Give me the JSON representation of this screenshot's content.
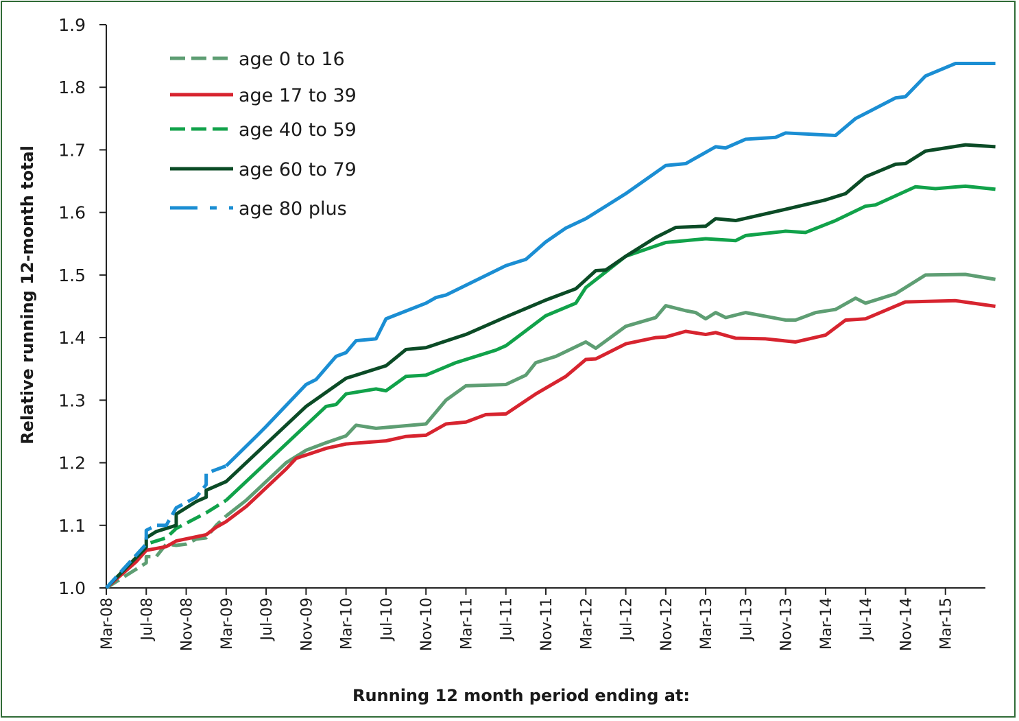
{
  "chart_data": {
    "type": "line",
    "title": "",
    "xlabel": "Running 12 month period ending at:",
    "ylabel": "Relative running 12-month total",
    "ylim": [
      1.0,
      1.9
    ],
    "yticks": [
      "1.0",
      "1.1",
      "1.2",
      "1.3",
      "1.4",
      "1.5",
      "1.6",
      "1.7",
      "1.8",
      "1.9"
    ],
    "xticks": [
      "Mar-08",
      "Jul-08",
      "Nov-08",
      "Mar-09",
      "Jul-09",
      "Nov-09",
      "Mar-10",
      "Jul-10",
      "Nov-10",
      "Mar-11",
      "Jul-11",
      "Nov-11",
      "Mar-12",
      "Jul-12",
      "Nov-12",
      "Mar-13",
      "Jul-13",
      "Nov-13",
      "Mar-14",
      "Jul-14",
      "Nov-14",
      "Mar-15"
    ],
    "x_range_months": [
      "Mar-08",
      "Jul-15"
    ],
    "grid": false,
    "legend_position": "top-left",
    "series": [
      {
        "name": "age 0 to 16",
        "color": "#5e9e73",
        "style": "dashed-then-solid",
        "points": [
          [
            "Mar-08",
            1.0
          ],
          [
            "Jun-08",
            1.03
          ],
          [
            "Jul-08",
            1.04
          ],
          [
            "Jul-08",
            1.05
          ],
          [
            "Aug-08",
            1.05
          ],
          [
            "Sep-08",
            1.07
          ],
          [
            "Oct-08",
            1.068
          ],
          [
            "Nov-08",
            1.07
          ],
          [
            "Dec-08",
            1.078
          ],
          [
            "Jan-09",
            1.08
          ],
          [
            "Feb-09",
            1.1
          ],
          [
            "Mar-09",
            1.115
          ],
          [
            "May-09",
            1.14
          ],
          [
            "Jul-09",
            1.17
          ],
          [
            "Sep-09",
            1.2
          ],
          [
            "Nov-09",
            1.22
          ],
          [
            "Jan-10",
            1.232
          ],
          [
            "Mar-10",
            1.243
          ],
          [
            "Apr-10",
            1.26
          ],
          [
            "Jun-10",
            1.255
          ],
          [
            "Nov-10",
            1.262
          ],
          [
            "Jan-11",
            1.3
          ],
          [
            "Mar-11",
            1.323
          ],
          [
            "Jul-11",
            1.325
          ],
          [
            "Sep-11",
            1.34
          ],
          [
            "Oct-11",
            1.36
          ],
          [
            "Dec-11",
            1.37
          ],
          [
            "Mar-12",
            1.393
          ],
          [
            "Apr-12",
            1.383
          ],
          [
            "Jul-12",
            1.418
          ],
          [
            "Oct-12",
            1.432
          ],
          [
            "Nov-12",
            1.451
          ],
          [
            "Jan-13",
            1.443
          ],
          [
            "Feb-13",
            1.44
          ],
          [
            "Mar-13",
            1.43
          ],
          [
            "Apr-13",
            1.44
          ],
          [
            "May-13",
            1.432
          ],
          [
            "Jul-13",
            1.44
          ],
          [
            "Nov-13",
            1.428
          ],
          [
            "Dec-13",
            1.428
          ],
          [
            "Feb-14",
            1.44
          ],
          [
            "Apr-14",
            1.445
          ],
          [
            "Jun-14",
            1.463
          ],
          [
            "Jul-14",
            1.455
          ],
          [
            "Oct-14",
            1.47
          ],
          [
            "Jan-15",
            1.5
          ],
          [
            "May-15",
            1.501
          ],
          [
            "Aug-15",
            1.493
          ]
        ]
      },
      {
        "name": "age 17 to 39",
        "color": "#d7242f",
        "style": "solid",
        "points": [
          [
            "Mar-08",
            1.0
          ],
          [
            "Jun-08",
            1.042
          ],
          [
            "Jul-08",
            1.06
          ],
          [
            "Sep-08",
            1.066
          ],
          [
            "Oct-08",
            1.075
          ],
          [
            "Jan-09",
            1.085
          ],
          [
            "Feb-09",
            1.097
          ],
          [
            "Mar-09",
            1.106
          ],
          [
            "May-09",
            1.13
          ],
          [
            "Jul-09",
            1.16
          ],
          [
            "Sep-09",
            1.19
          ],
          [
            "Oct-09",
            1.207
          ],
          [
            "Jan-10",
            1.223
          ],
          [
            "Mar-10",
            1.23
          ],
          [
            "Jul-10",
            1.235
          ],
          [
            "Sep-10",
            1.242
          ],
          [
            "Nov-10",
            1.244
          ],
          [
            "Jan-11",
            1.262
          ],
          [
            "Mar-11",
            1.265
          ],
          [
            "May-11",
            1.277
          ],
          [
            "Jul-11",
            1.278
          ],
          [
            "Oct-11",
            1.31
          ],
          [
            "Jan-12",
            1.338
          ],
          [
            "Mar-12",
            1.365
          ],
          [
            "Apr-12",
            1.366
          ],
          [
            "Jul-12",
            1.39
          ],
          [
            "Oct-12",
            1.4
          ],
          [
            "Nov-12",
            1.401
          ],
          [
            "Jan-13",
            1.41
          ],
          [
            "Mar-13",
            1.405
          ],
          [
            "Apr-13",
            1.408
          ],
          [
            "Jun-13",
            1.399
          ],
          [
            "Sep-13",
            1.398
          ],
          [
            "Dec-13",
            1.393
          ],
          [
            "Mar-14",
            1.404
          ],
          [
            "May-14",
            1.428
          ],
          [
            "Jul-14",
            1.43
          ],
          [
            "Nov-14",
            1.457
          ],
          [
            "Apr-15",
            1.459
          ],
          [
            "Aug-15",
            1.45
          ]
        ]
      },
      {
        "name": "age 40 to 59",
        "color": "#11a24a",
        "style": "dashed-then-solid",
        "points": [
          [
            "Mar-08",
            1.0
          ],
          [
            "Jul-08",
            1.07
          ],
          [
            "Sep-08",
            1.08
          ],
          [
            "Oct-08",
            1.095
          ],
          [
            "Jan-09",
            1.12
          ],
          [
            "Mar-09",
            1.14
          ],
          [
            "Jul-09",
            1.2
          ],
          [
            "Nov-09",
            1.26
          ],
          [
            "Jan-10",
            1.29
          ],
          [
            "Feb-10",
            1.293
          ],
          [
            "Mar-10",
            1.31
          ],
          [
            "Jun-10",
            1.318
          ],
          [
            "Jul-10",
            1.315
          ],
          [
            "Sep-10",
            1.338
          ],
          [
            "Nov-10",
            1.34
          ],
          [
            "Feb-11",
            1.36
          ],
          [
            "Jun-11",
            1.38
          ],
          [
            "Jul-11",
            1.387
          ],
          [
            "Nov-11",
            1.435
          ],
          [
            "Feb-12",
            1.455
          ],
          [
            "Mar-12",
            1.48
          ],
          [
            "Jul-12",
            1.53
          ],
          [
            "Nov-12",
            1.552
          ],
          [
            "Mar-13",
            1.558
          ],
          [
            "Jun-13",
            1.555
          ],
          [
            "Jul-13",
            1.563
          ],
          [
            "Nov-13",
            1.57
          ],
          [
            "Jan-14",
            1.568
          ],
          [
            "Apr-14",
            1.587
          ],
          [
            "Jul-14",
            1.61
          ],
          [
            "Aug-14",
            1.612
          ],
          [
            "Dec-14",
            1.641
          ],
          [
            "Feb-15",
            1.638
          ],
          [
            "May-15",
            1.642
          ],
          [
            "Aug-15",
            1.637
          ]
        ]
      },
      {
        "name": "age 60 to 79",
        "color": "#0b4b26",
        "style": "solid",
        "points": [
          [
            "Mar-08",
            1.0
          ],
          [
            "Jul-08",
            1.065
          ],
          [
            "Jul-08",
            1.08
          ],
          [
            "Aug-08",
            1.09
          ],
          [
            "Oct-08",
            1.1
          ],
          [
            "Oct-08",
            1.118
          ],
          [
            "Dec-08",
            1.138
          ],
          [
            "Jan-09",
            1.145
          ],
          [
            "Jan-09",
            1.156
          ],
          [
            "Mar-09",
            1.17
          ],
          [
            "Jul-09",
            1.23
          ],
          [
            "Nov-09",
            1.29
          ],
          [
            "Mar-10",
            1.335
          ],
          [
            "Jul-10",
            1.355
          ],
          [
            "Sep-10",
            1.381
          ],
          [
            "Nov-10",
            1.384
          ],
          [
            "Mar-11",
            1.405
          ],
          [
            "Jul-11",
            1.433
          ],
          [
            "Nov-11",
            1.46
          ],
          [
            "Feb-12",
            1.478
          ],
          [
            "Apr-12",
            1.507
          ],
          [
            "May-12",
            1.508
          ],
          [
            "Jul-12",
            1.53
          ],
          [
            "Oct-12",
            1.56
          ],
          [
            "Dec-12",
            1.576
          ],
          [
            "Mar-13",
            1.578
          ],
          [
            "Apr-13",
            1.59
          ],
          [
            "Jun-13",
            1.587
          ],
          [
            "Nov-13",
            1.605
          ],
          [
            "Mar-14",
            1.62
          ],
          [
            "May-14",
            1.63
          ],
          [
            "Jul-14",
            1.657
          ],
          [
            "Oct-14",
            1.677
          ],
          [
            "Nov-14",
            1.678
          ],
          [
            "Jan-15",
            1.698
          ],
          [
            "May-15",
            1.708
          ],
          [
            "Aug-15",
            1.705
          ]
        ]
      },
      {
        "name": "age 80 plus",
        "color": "#1b8ed3",
        "style": "dashed-then-solid",
        "points": [
          [
            "Mar-08",
            1.0
          ],
          [
            "Jul-08",
            1.07
          ],
          [
            "Jul-08",
            1.092
          ],
          [
            "Aug-08",
            1.1
          ],
          [
            "Sep-08",
            1.1
          ],
          [
            "Oct-08",
            1.128
          ],
          [
            "Dec-08",
            1.145
          ],
          [
            "Jan-09",
            1.165
          ],
          [
            "Jan-09",
            1.183
          ],
          [
            "Mar-09",
            1.195
          ],
          [
            "Jun-09",
            1.242
          ],
          [
            "Jul-09",
            1.258
          ],
          [
            "Nov-09",
            1.325
          ],
          [
            "Dec-09",
            1.333
          ],
          [
            "Feb-10",
            1.37
          ],
          [
            "Mar-10",
            1.376
          ],
          [
            "Apr-10",
            1.395
          ],
          [
            "Jun-10",
            1.398
          ],
          [
            "Jul-10",
            1.43
          ],
          [
            "Nov-10",
            1.455
          ],
          [
            "Dec-10",
            1.464
          ],
          [
            "Jan-11",
            1.468
          ],
          [
            "Jul-11",
            1.515
          ],
          [
            "Sep-11",
            1.525
          ],
          [
            "Nov-11",
            1.553
          ],
          [
            "Jan-12",
            1.575
          ],
          [
            "Mar-12",
            1.59
          ],
          [
            "Jul-12",
            1.63
          ],
          [
            "Nov-12",
            1.675
          ],
          [
            "Jan-13",
            1.678
          ],
          [
            "Apr-13",
            1.705
          ],
          [
            "May-13",
            1.703
          ],
          [
            "Jul-13",
            1.717
          ],
          [
            "Oct-13",
            1.72
          ],
          [
            "Nov-13",
            1.727
          ],
          [
            "Apr-14",
            1.723
          ],
          [
            "Jun-14",
            1.75
          ],
          [
            "Oct-14",
            1.783
          ],
          [
            "Nov-14",
            1.785
          ],
          [
            "Jan-15",
            1.818
          ],
          [
            "Apr-15",
            1.838
          ],
          [
            "Aug-15",
            1.838
          ]
        ]
      }
    ]
  }
}
